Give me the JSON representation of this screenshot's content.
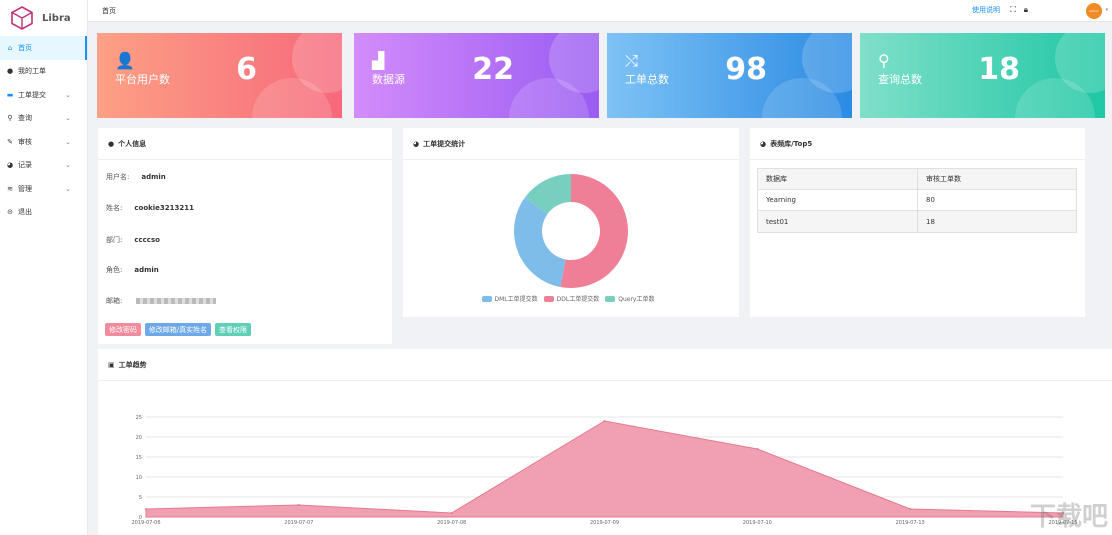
{
  "app": {
    "name": "Libra"
  },
  "sidebar": {
    "items": [
      {
        "label": "首页",
        "icon": "home-icon",
        "glyph": "⌂",
        "active": true,
        "has_submenu": false
      },
      {
        "label": "我的工单",
        "icon": "user-icon",
        "glyph": "●",
        "active": false,
        "has_submenu": false
      },
      {
        "label": "工单提交",
        "icon": "folder-icon",
        "glyph": "▬",
        "active": false,
        "has_submenu": true,
        "blue": true
      },
      {
        "label": "查询",
        "icon": "search-icon",
        "glyph": "⚲",
        "active": false,
        "has_submenu": true
      },
      {
        "label": "审核",
        "icon": "edit-icon",
        "glyph": "✎",
        "active": false,
        "has_submenu": true
      },
      {
        "label": "记录",
        "icon": "pie-icon",
        "glyph": "◕",
        "active": false,
        "has_submenu": true
      },
      {
        "label": "管理",
        "icon": "stack-icon",
        "glyph": "≋",
        "active": false,
        "has_submenu": true
      },
      {
        "label": "退出",
        "icon": "logout-icon",
        "glyph": "⊝",
        "active": false,
        "has_submenu": false
      }
    ]
  },
  "header": {
    "breadcrumb": "首页",
    "help_link": "使用说明",
    "fullscreen_icon": "fullscreen-icon",
    "lock_icon": "lock-icon",
    "avatar_text": "admin"
  },
  "stats": [
    {
      "label": "平台用户数",
      "value": "6",
      "icon": "user-add-icon",
      "glyph": "👤",
      "gradient": [
        "#fda085",
        "#f6697b"
      ]
    },
    {
      "label": "数据源",
      "value": "22",
      "icon": "bars-icon",
      "glyph": "▟",
      "gradient": [
        "#d38cfb",
        "#9a5cf2"
      ]
    },
    {
      "label": "工单总数",
      "value": "98",
      "icon": "shuffle-icon",
      "glyph": "⤭",
      "gradient": [
        "#7ec2f5",
        "#2b8be3"
      ]
    },
    {
      "label": "查询总数",
      "value": "18",
      "icon": "search-icon",
      "glyph": "⚲",
      "gradient": [
        "#80dfc9",
        "#1fc7a4"
      ]
    }
  ],
  "personal": {
    "title": "个人信息",
    "rows": [
      {
        "label": "用户名:",
        "value": "admin"
      },
      {
        "label": "姓名:",
        "value": "cookie3213211"
      },
      {
        "label": "部门:",
        "value": "ccccso"
      },
      {
        "label": "角色:",
        "value": "admin"
      },
      {
        "label": "邮箱:",
        "value": ""
      }
    ],
    "buttons": [
      {
        "label": "修改密码",
        "color": "#f08c9c"
      },
      {
        "label": "修改邮箱/真实姓名",
        "color": "#6ea8e8"
      },
      {
        "label": "查看权限",
        "color": "#5fcfb6"
      }
    ]
  },
  "pie_panel": {
    "title": "工单提交统计",
    "legend": [
      {
        "label": "DML工单提交数",
        "color": "#7ebcea"
      },
      {
        "label": "DDL工单提交数",
        "color": "#ef7f96"
      },
      {
        "label": "Query工单数",
        "color": "#78cfc0"
      }
    ]
  },
  "top5": {
    "title": "表频库/Top5",
    "headers": [
      "数据库",
      "审核工单数"
    ],
    "rows": [
      [
        "Yearning",
        "80"
      ],
      [
        "test01",
        "18"
      ]
    ]
  },
  "trend": {
    "title": "工单趋势"
  },
  "chart_data": [
    {
      "type": "pie",
      "title": "工单提交统计",
      "labels": [
        "DML工单提交数",
        "DDL工单提交数",
        "Query工单数"
      ],
      "values": [
        32,
        53,
        15
      ],
      "colors": [
        "#7ebcea",
        "#ef7f96",
        "#78cfc0"
      ],
      "donut": true,
      "legend": "bottom"
    },
    {
      "type": "area",
      "title": "工单趋势",
      "x": [
        "2019-07-06",
        "2019-07-07",
        "2019-07-08",
        "2019-07-09",
        "2019-07-10",
        "2019-07-13",
        "2019-07-15"
      ],
      "values": [
        2,
        3,
        1,
        24,
        17,
        2,
        1
      ],
      "ylim": [
        0,
        25
      ],
      "yticks": [
        0,
        5,
        10,
        15,
        20,
        25
      ],
      "color": "#ef8fa3",
      "grid": true
    }
  ],
  "watermark": "下载吧"
}
